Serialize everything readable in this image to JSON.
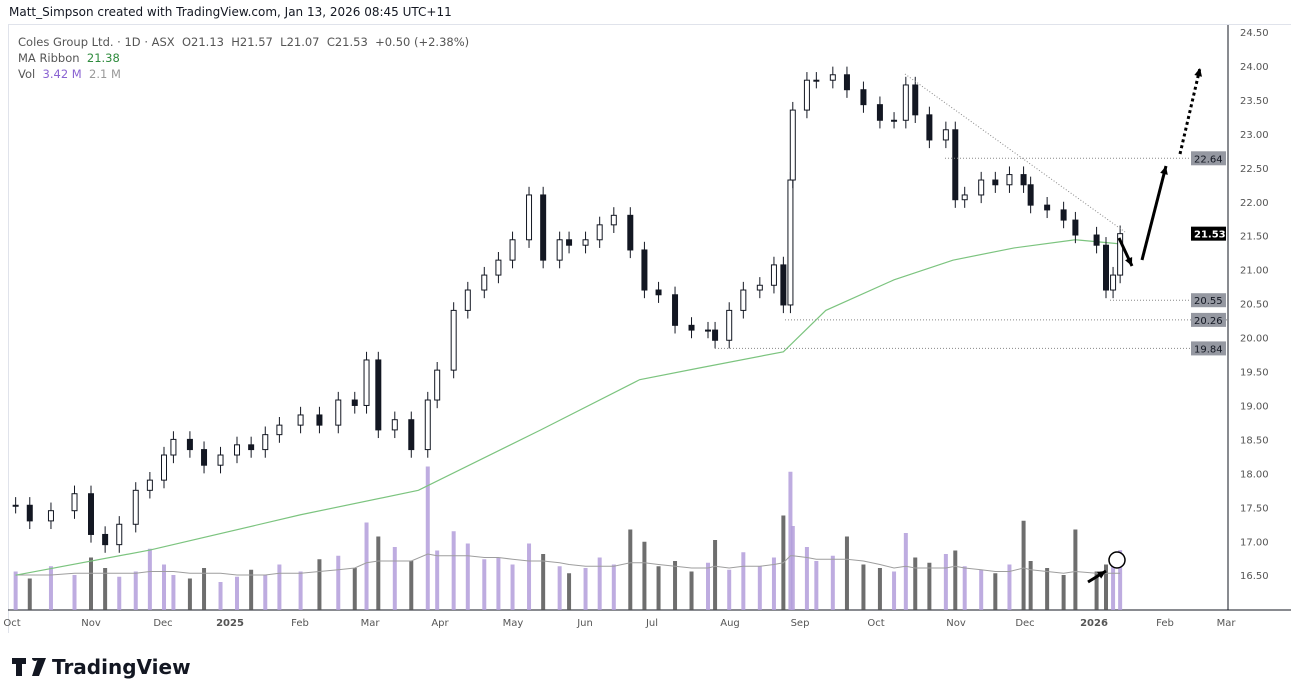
{
  "credit": "Matt_Simpson created with TradingView.com, Jan 13, 2026 08:45 UTC+11",
  "legend": {
    "symbol": "Coles Group Ltd. · 1D · ASX",
    "open": "O21.13",
    "high": "H21.57",
    "low": "L21.07",
    "close": "C21.53",
    "change": "+0.50 (+2.38%)",
    "ma_label": "MA Ribbon",
    "ma_value": "21.38",
    "vol_label": "Vol",
    "vol_value": "3.42 M",
    "vol_ma": "2.1 M"
  },
  "footer": {
    "brand": "TradingView"
  },
  "colors": {
    "candle": "#131722",
    "ma": "#7cc47f",
    "vol_up": "#b39ddb",
    "vol_down": "#555555",
    "vol_ma": "#9e9e9e",
    "price_label": "#000000",
    "level_label": "#9598a1"
  },
  "chart_data": {
    "type": "candlestick",
    "ylim": [
      16.2,
      24.6
    ],
    "y_ticks": [
      "24.50",
      "24.00",
      "23.50",
      "23.00",
      "22.50",
      "22.00",
      "21.50",
      "21.00",
      "20.50",
      "20.00",
      "19.50",
      "19.00",
      "18.50",
      "18.00",
      "17.50",
      "17.00",
      "16.50"
    ],
    "x_ticks": [
      "Oct",
      "Nov",
      "Dec",
      "2025",
      "Feb",
      "Mar",
      "Apr",
      "May",
      "Jun",
      "Jul",
      "Aug",
      "Sep",
      "Oct",
      "Nov",
      "Dec",
      "2026",
      "Feb",
      "Mar"
    ],
    "last_price": "21.53",
    "levels": [
      "22.64",
      "20.55",
      "20.26",
      "19.84"
    ],
    "dates": [
      "2024-09-30",
      "2024-10-06",
      "2024-10-15",
      "2024-10-25",
      "2024-11-01",
      "2024-11-07",
      "2024-11-13",
      "2024-11-20",
      "2024-11-26",
      "2024-12-02",
      "2024-12-06",
      "2024-12-13",
      "2024-12-19",
      "2024-12-26",
      "2025-01-02",
      "2025-01-08",
      "2025-01-14",
      "2025-01-20",
      "2025-01-29",
      "2025-02-06",
      "2025-02-14",
      "2025-02-21",
      "2025-02-26",
      "2025-03-03",
      "2025-03-10",
      "2025-03-17",
      "2025-03-24",
      "2025-03-28",
      "2025-04-04",
      "2025-04-10",
      "2025-04-17",
      "2025-04-23",
      "2025-04-29",
      "2025-05-06",
      "2025-05-12",
      "2025-05-19",
      "2025-05-23",
      "2025-05-30",
      "2025-06-05",
      "2025-06-11",
      "2025-06-18",
      "2025-06-24",
      "2025-06-30",
      "2025-07-07",
      "2025-07-14",
      "2025-07-21",
      "2025-07-24",
      "2025-07-30",
      "2025-08-05",
      "2025-08-12",
      "2025-08-18",
      "2025-08-22",
      "2025-08-25",
      "2025-08-26",
      "2025-09-01",
      "2025-09-05",
      "2025-09-12",
      "2025-09-18",
      "2025-09-25",
      "2025-10-02",
      "2025-10-08",
      "2025-10-13",
      "2025-10-17",
      "2025-10-23",
      "2025-10-30",
      "2025-11-03",
      "2025-11-07",
      "2025-11-14",
      "2025-11-20",
      "2025-11-26",
      "2025-12-02",
      "2025-12-05",
      "2025-12-12",
      "2025-12-19",
      "2025-12-24",
      "2026-01-02",
      "2026-01-06",
      "2026-01-09",
      "2026-01-12"
    ],
    "close": [
      17.53,
      17.3,
      17.45,
      17.7,
      17.1,
      16.95,
      17.25,
      17.75,
      17.9,
      18.27,
      18.5,
      18.35,
      18.12,
      18.27,
      18.42,
      18.35,
      18.57,
      18.71,
      18.86,
      18.71,
      19.08,
      19.0,
      19.67,
      18.64,
      18.79,
      18.35,
      19.08,
      19.52,
      20.4,
      20.7,
      20.92,
      21.14,
      21.44,
      22.1,
      21.14,
      21.44,
      21.36,
      21.44,
      21.66,
      21.8,
      21.29,
      20.7,
      20.63,
      20.18,
      20.11,
      20.11,
      19.96,
      20.4,
      20.7,
      20.77,
      21.07,
      20.48,
      22.32,
      23.35,
      23.79,
      23.79,
      23.87,
      23.65,
      23.43,
      23.2,
      23.2,
      23.72,
      23.28,
      22.91,
      23.06,
      22.03,
      22.1,
      22.32,
      22.25,
      22.4,
      22.25,
      21.95,
      21.88,
      21.73,
      21.51,
      21.36,
      20.7,
      20.92,
      21.53
    ],
    "volume_m": [
      2.2,
      1.8,
      2.5,
      2.0,
      3.0,
      2.4,
      1.9,
      2.2,
      3.5,
      2.6,
      2.0,
      1.8,
      2.4,
      1.6,
      1.9,
      2.3,
      2.0,
      2.6,
      2.2,
      2.9,
      3.1,
      2.4,
      5.0,
      4.2,
      3.6,
      2.8,
      8.2,
      3.4,
      4.5,
      3.8,
      2.9,
      3.0,
      2.6,
      3.8,
      3.2,
      2.5,
      2.1,
      2.4,
      3.0,
      2.6,
      4.6,
      3.9,
      2.5,
      2.8,
      2.2,
      2.7,
      4.0,
      2.3,
      3.3,
      2.5,
      3.0,
      5.4,
      7.9,
      4.8,
      3.6,
      2.8,
      3.1,
      4.2,
      2.6,
      2.4,
      2.2,
      4.4,
      3.0,
      2.7,
      3.2,
      3.4,
      2.5,
      2.3,
      2.1,
      2.6,
      5.1,
      2.8,
      2.4,
      2.0,
      4.6,
      2.2,
      2.6,
      2.9,
      3.42
    ],
    "volume_ma_m": [
      2.0,
      2.0,
      2.0,
      2.1,
      2.1,
      2.1,
      2.1,
      2.1,
      2.2,
      2.2,
      2.2,
      2.1,
      2.1,
      2.1,
      2.0,
      2.0,
      2.0,
      2.1,
      2.1,
      2.2,
      2.3,
      2.4,
      2.7,
      2.8,
      2.8,
      2.8,
      3.2,
      3.1,
      3.1,
      3.1,
      3.0,
      3.0,
      2.9,
      2.8,
      2.8,
      2.7,
      2.6,
      2.5,
      2.5,
      2.5,
      2.7,
      2.7,
      2.6,
      2.5,
      2.4,
      2.4,
      2.5,
      2.4,
      2.5,
      2.5,
      2.6,
      2.7,
      3.1,
      3.1,
      3.0,
      2.9,
      2.9,
      2.9,
      2.8,
      2.6,
      2.4,
      2.5,
      2.4,
      2.4,
      2.4,
      2.5,
      2.4,
      2.3,
      2.2,
      2.2,
      2.4,
      2.3,
      2.2,
      2.1,
      2.2,
      2.1,
      2.1,
      2.1,
      2.1
    ],
    "ma_dates": [
      "2024-09-30",
      "2024-11-26",
      "2025-01-29",
      "2025-03-20",
      "2025-05-11",
      "2025-06-22",
      "2025-07-17",
      "2025-08-22",
      "2025-09-09",
      "2025-10-08",
      "2025-11-02",
      "2025-11-28",
      "2025-12-24",
      "2026-01-12"
    ],
    "ma": [
      16.5,
      16.87,
      17.39,
      17.75,
      18.64,
      19.38,
      19.55,
      19.79,
      20.4,
      20.85,
      21.14,
      21.32,
      21.44,
      21.38
    ]
  }
}
